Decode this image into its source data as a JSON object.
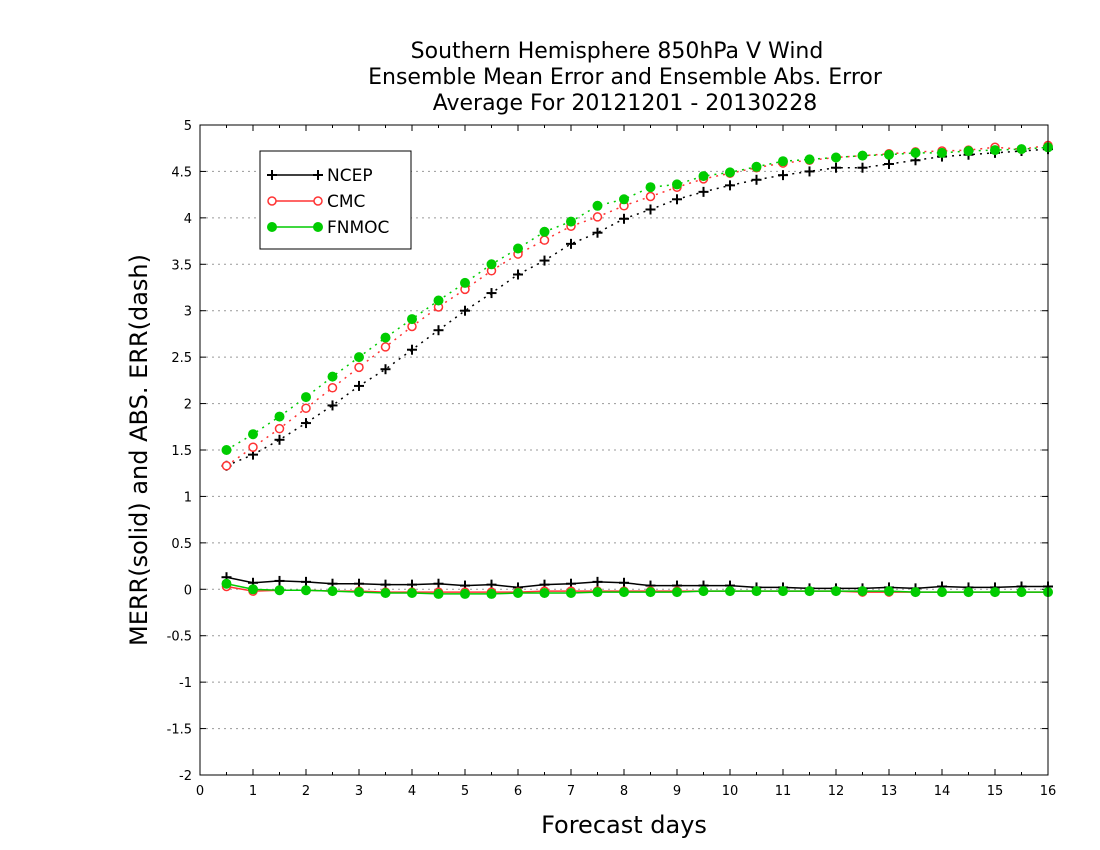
{
  "chart_data": {
    "type": "line",
    "title": [
      "Southern Hemisphere 850hPa V Wind",
      "Ensemble Mean Error and Ensemble Abs. Error",
      "Average For 20121201 - 20130228"
    ],
    "xlabel": "Forecast days",
    "ylabel": "MERR(solid) and ABS. ERR(dash)",
    "xlim": [
      0,
      16
    ],
    "ylim": [
      -2,
      5
    ],
    "xticks": [
      0,
      1,
      2,
      3,
      4,
      5,
      6,
      7,
      8,
      9,
      10,
      11,
      12,
      13,
      14,
      15,
      16
    ],
    "yticks": [
      -2,
      -1.5,
      -1,
      -0.5,
      0,
      0.5,
      1,
      1.5,
      2,
      2.5,
      3,
      3.5,
      4,
      4.5,
      5
    ],
    "ytick_labels": [
      "-2",
      "-1.5",
      "-1",
      "-0.5",
      "0",
      "0.5",
      "1",
      "1.5",
      "2",
      "2.5",
      "3",
      "3.5",
      "4",
      "4.5",
      "5"
    ],
    "grid": "horizontal dotted",
    "legend_position": "top-left",
    "x": [
      0.5,
      1,
      1.5,
      2,
      2.5,
      3,
      3.5,
      4,
      4.5,
      5,
      5.5,
      6,
      6.5,
      7,
      7.5,
      8,
      8.5,
      9,
      9.5,
      10,
      10.5,
      11,
      11.5,
      12,
      12.5,
      13,
      13.5,
      14,
      14.5,
      15,
      15.5,
      16
    ],
    "series": [
      {
        "name": "NCEP",
        "color": "#000000",
        "marker": "plus",
        "merr": [
          0.13,
          0.07,
          0.09,
          0.08,
          0.06,
          0.06,
          0.05,
          0.05,
          0.06,
          0.04,
          0.05,
          0.02,
          0.05,
          0.06,
          0.08,
          0.07,
          0.04,
          0.04,
          0.04,
          0.04,
          0.02,
          0.02,
          0.01,
          0.01,
          0.01,
          0.02,
          0.01,
          0.03,
          0.02,
          0.02,
          0.03,
          0.03
        ],
        "abs_err": [
          1.33,
          1.45,
          1.61,
          1.79,
          1.98,
          2.19,
          2.37,
          2.58,
          2.79,
          3.0,
          3.19,
          3.39,
          3.54,
          3.72,
          3.84,
          3.99,
          4.09,
          4.2,
          4.28,
          4.35,
          4.41,
          4.46,
          4.5,
          4.54,
          4.54,
          4.58,
          4.62,
          4.66,
          4.68,
          4.7,
          4.72,
          4.74
        ]
      },
      {
        "name": "CMC",
        "color": "#ff3333",
        "marker": "circle-open",
        "merr": [
          0.03,
          -0.02,
          -0.01,
          -0.01,
          -0.02,
          -0.02,
          -0.03,
          -0.03,
          -0.03,
          -0.03,
          -0.03,
          -0.03,
          -0.02,
          -0.02,
          -0.02,
          -0.02,
          -0.02,
          -0.02,
          -0.02,
          -0.02,
          -0.02,
          -0.02,
          -0.02,
          -0.02,
          -0.03,
          -0.03,
          -0.03,
          -0.03,
          -0.03,
          -0.03,
          -0.03,
          -0.03
        ],
        "abs_err": [
          1.33,
          1.53,
          1.73,
          1.95,
          2.17,
          2.39,
          2.61,
          2.83,
          3.04,
          3.23,
          3.43,
          3.61,
          3.76,
          3.91,
          4.01,
          4.13,
          4.23,
          4.33,
          4.42,
          4.48,
          4.54,
          4.59,
          4.62,
          4.65,
          4.67,
          4.69,
          4.71,
          4.72,
          4.73,
          4.76,
          4.74,
          4.78
        ]
      },
      {
        "name": "FNMOC",
        "color": "#00cc00",
        "marker": "circle-filled",
        "merr": [
          0.06,
          0.0,
          -0.01,
          -0.01,
          -0.02,
          -0.03,
          -0.04,
          -0.04,
          -0.05,
          -0.05,
          -0.05,
          -0.04,
          -0.04,
          -0.04,
          -0.03,
          -0.03,
          -0.03,
          -0.03,
          -0.02,
          -0.02,
          -0.02,
          -0.02,
          -0.02,
          -0.02,
          -0.02,
          -0.02,
          -0.03,
          -0.03,
          -0.03,
          -0.03,
          -0.03,
          -0.03
        ],
        "abs_err": [
          1.5,
          1.67,
          1.86,
          2.07,
          2.29,
          2.5,
          2.71,
          2.91,
          3.11,
          3.3,
          3.5,
          3.67,
          3.85,
          3.96,
          4.13,
          4.2,
          4.33,
          4.36,
          4.45,
          4.49,
          4.55,
          4.61,
          4.63,
          4.65,
          4.67,
          4.68,
          4.7,
          4.7,
          4.72,
          4.73,
          4.74,
          4.76
        ]
      }
    ]
  }
}
